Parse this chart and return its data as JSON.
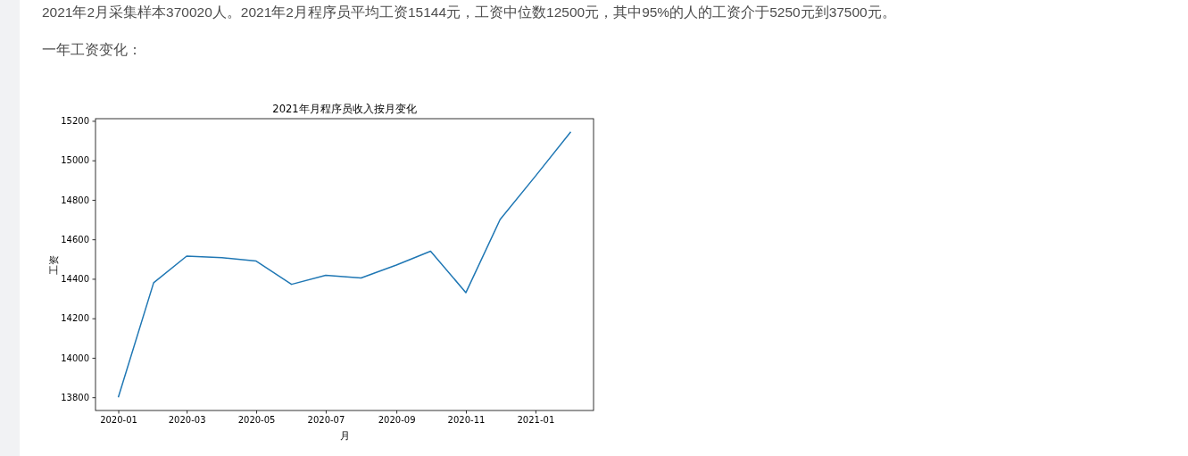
{
  "chart_data": {
    "type": "line",
    "title": "2021年月程序员收入按月变化",
    "xlabel": "月",
    "ylabel": "工资",
    "annotations": [
      "2021年2月采集样本370020人。2021年2月程序员平均工资15144元，工资中位数12500元，其中95%的人的工资介于5250元到37500元。",
      "一年工资变化："
    ],
    "x": [
      "2020-01",
      "2020-02",
      "2020-03",
      "2020-04",
      "2020-05",
      "2020-06",
      "2020-07",
      "2020-08",
      "2020-09",
      "2020-10",
      "2020-11",
      "2020-12",
      "2021-01",
      "2021-02"
    ],
    "series": [
      {
        "color": "#1f77b4",
        "values": [
          13800,
          14380,
          14515,
          14507,
          14490,
          14372,
          14418,
          14404,
          14470,
          14540,
          14330,
          14700,
          14920,
          15144
        ]
      }
    ],
    "xlim": [
      "2019-12-12",
      "2021-02-21"
    ],
    "ylim": [
      13733,
      15211
    ],
    "xticks": [
      "2020-01",
      "2020-03",
      "2020-05",
      "2020-07",
      "2020-09",
      "2020-11",
      "2021-01"
    ],
    "yticks": [
      13800,
      14000,
      14200,
      14400,
      14600,
      14800,
      15000,
      15200
    ]
  }
}
